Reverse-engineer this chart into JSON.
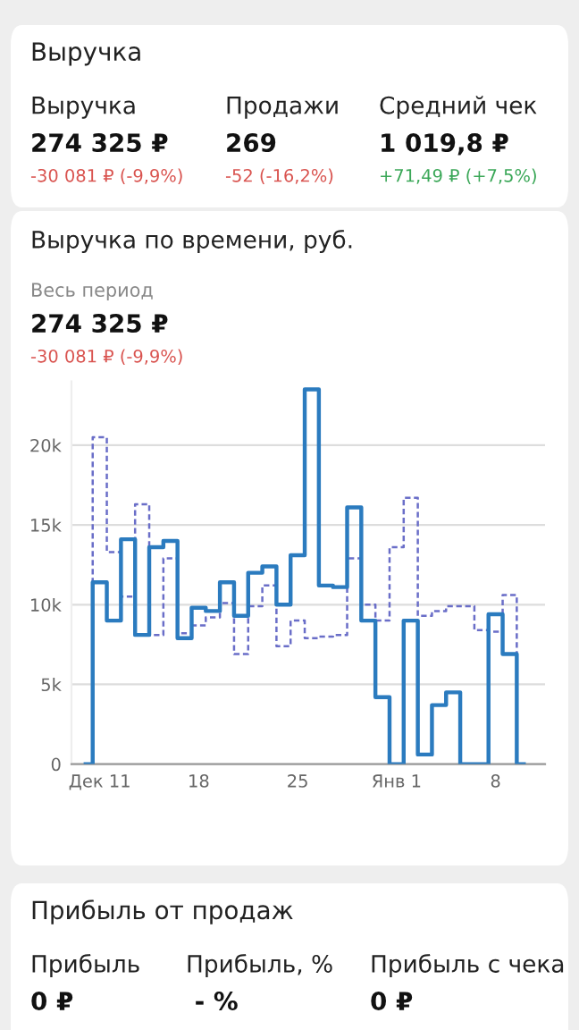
{
  "chart_data": [
    {
      "type": "other",
      "title": "Выручка",
      "annotations": [
        "Выручка",
        "Продажи",
        "Средний чек",
        "274 325 ₽",
        "269",
        "1 019,8 ₽",
        "-30 081 ₽ (-9,9%)",
        "-52 (-16,2%)",
        "+71,49 ₽ (+7,5%)"
      ],
      "colors": [
        "#222222",
        "#222222",
        "#222222",
        "#111111",
        "#111111",
        "#111111",
        "#d9534f",
        "#d9534f",
        "#3aa757"
      ]
    },
    {
      "type": "step",
      "title": "Выручка по времени, руб.",
      "subtitle": "Весь период",
      "annotations": [
        "274 325 ₽",
        "-30 081 ₽ (-9,9%)"
      ],
      "categories": [
        null,
        "Дек 11",
        null,
        null,
        null,
        null,
        null,
        null,
        "18",
        null,
        null,
        null,
        null,
        null,
        null,
        "25",
        null,
        null,
        null,
        null,
        null,
        null,
        "Янв 1",
        null,
        null,
        null,
        null,
        null,
        null,
        "8",
        null,
        null
      ],
      "series": [
        {
          "color": "#2b7bbf",
          "line_style": "solid",
          "values": [
            0,
            11400,
            9000,
            14100,
            8100,
            13600,
            14000,
            7900,
            9800,
            9600,
            11400,
            9300,
            12000,
            12400,
            10000,
            13100,
            23500,
            11200,
            11100,
            16100,
            9000,
            4200,
            0,
            9000,
            600,
            3700,
            4500,
            0,
            0,
            9400,
            6900,
            0
          ]
        },
        {
          "color": "#6a6ec8",
          "line_style": "dashed",
          "values": [
            0,
            20500,
            13300,
            10500,
            16300,
            8100,
            12900,
            8200,
            8700,
            9200,
            10100,
            6900,
            9900,
            11200,
            7400,
            9000,
            7900,
            8000,
            8100,
            12900,
            10000,
            9000,
            13600,
            16700,
            9300,
            9600,
            9900,
            9900,
            8400,
            8300,
            10600,
            0
          ]
        }
      ],
      "ylim": [
        0,
        24000
      ],
      "yticks": [
        0,
        {
          "value": 5000,
          "label": "5k"
        },
        {
          "value": 10000,
          "label": "10k"
        },
        {
          "value": 15000,
          "label": "15k"
        },
        {
          "value": 20000,
          "label": "20k"
        }
      ],
      "grid": "y",
      "marker": "none"
    },
    {
      "type": "other",
      "title": "Прибыль от продаж",
      "annotations": [
        "Прибыль",
        "Прибыль, %",
        "Прибыль с чека",
        "0 ₽",
        " - %",
        "0 ₽"
      ],
      "colors": [
        "#222222",
        "#222222",
        "#222222",
        "#111111",
        "#111111",
        "#111111"
      ]
    }
  ]
}
